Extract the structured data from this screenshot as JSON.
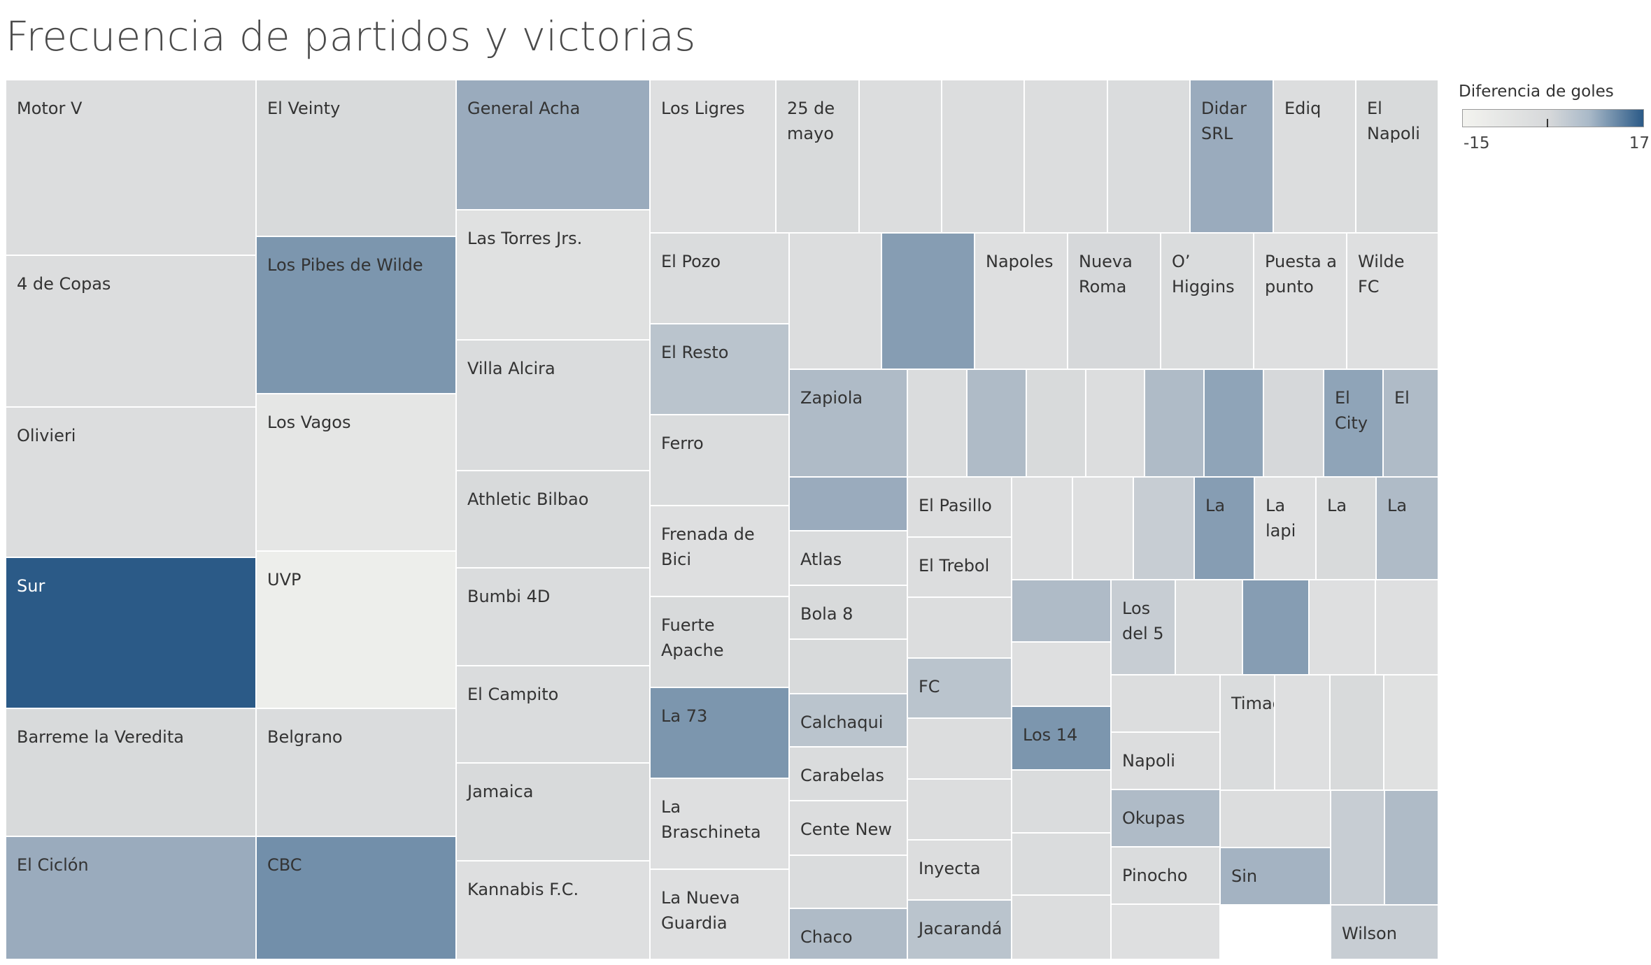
{
  "title": "Frecuencia de partidos y victorias",
  "legend": {
    "title": "Diferencia de goles",
    "min_label": "-15",
    "max_label": "17"
  },
  "chart_data": {
    "type": "treemap",
    "title": "Frecuencia de partidos y victorias",
    "size_measure": "",
    "color_measure": "Diferencia de goles",
    "color_range": [
      -15,
      17
    ],
    "colors": {
      "low": "#f3f3ef",
      "mid": "#d6d8da",
      "high": "#2b5a87"
    },
    "cells": [
      {
        "label": "Motor V",
        "value": 39,
        "color_value": -3
      },
      {
        "label": "4 de Copas",
        "value": 34,
        "color_value": -3
      },
      {
        "label": "Olivieri",
        "value": 33,
        "color_value": -3
      },
      {
        "label": "Sur",
        "value": 33,
        "color_value": 17
      },
      {
        "label": "Barreme la Veredita",
        "value": 28,
        "color_value": -1
      },
      {
        "label": "El Ciclón",
        "value": 28,
        "color_value": 5
      },
      {
        "label": "El Veinty",
        "value": 28,
        "color_value": -1
      },
      {
        "label": "Los Pibes de Wilde",
        "value": 28,
        "color_value": 8
      },
      {
        "label": "Los Vagos",
        "value": 28,
        "color_value": -8
      },
      {
        "label": "UVP",
        "value": 28,
        "color_value": -12
      },
      {
        "label": "Belgrano",
        "value": 22,
        "color_value": -2
      },
      {
        "label": "CBC",
        "value": 22,
        "color_value": 9
      },
      {
        "label": "General Acha",
        "value": 23,
        "color_value": 5
      },
      {
        "label": "Las Torres Jrs.",
        "value": 23,
        "color_value": -5
      },
      {
        "label": "Villa Alcira",
        "value": 23,
        "color_value": -2
      },
      {
        "label": "Athletic Bilbao",
        "value": 17,
        "color_value": -1
      },
      {
        "label": "Bumbi 4D",
        "value": 17,
        "color_value": -2
      },
      {
        "label": "El Campito",
        "value": 17,
        "color_value": -2
      },
      {
        "label": "Jamaica",
        "value": 17,
        "color_value": -1
      },
      {
        "label": "Kannabis F.C.",
        "value": 17,
        "color_value": -4
      },
      {
        "label": "Los Ligres",
        "value": 17,
        "color_value": -4
      },
      {
        "label": "25 de mayo",
        "value": 10,
        "color_value": -1
      },
      {
        "label": "",
        "value": 10,
        "color_value": -3
      },
      {
        "label": "",
        "value": 10,
        "color_value": -3
      },
      {
        "label": "",
        "value": 10,
        "color_value": -3
      },
      {
        "label": "",
        "value": 10,
        "color_value": -2
      },
      {
        "label": "Didar SRL",
        "value": 10,
        "color_value": 5
      },
      {
        "label": "Ediq",
        "value": 10,
        "color_value": -3
      },
      {
        "label": "El Napoli",
        "value": 10,
        "color_value": -1
      },
      {
        "label": "El Pozo",
        "value": 10,
        "color_value": -2
      },
      {
        "label": "El Resto",
        "value": 10,
        "color_value": 2
      },
      {
        "label": "Ferro",
        "value": 10,
        "color_value": -2
      },
      {
        "label": "Frenada de Bici",
        "value": 10,
        "color_value": -4
      },
      {
        "label": "Fuerte Apache",
        "value": 10,
        "color_value": -1
      },
      {
        "label": "La 73",
        "value": 10,
        "color_value": 8
      },
      {
        "label": "La Braschineta",
        "value": 10,
        "color_value": -4
      },
      {
        "label": "La Nueva Guardia",
        "value": 10,
        "color_value": -4
      },
      {
        "label": "",
        "value": 9,
        "color_value": -3
      },
      {
        "label": "",
        "value": 9,
        "color_value": 7
      },
      {
        "label": "Napoles",
        "value": 9,
        "color_value": -4
      },
      {
        "label": "Nueva Roma",
        "value": 9,
        "color_value": 0
      },
      {
        "label": "O’ Higgins",
        "value": 9,
        "color_value": -2
      },
      {
        "label": "Puesta a punto",
        "value": 9,
        "color_value": -4
      },
      {
        "label": "Wilde FC",
        "value": 9,
        "color_value": -4
      },
      {
        "label": "Zapiola",
        "value": 8,
        "color_value": 3
      },
      {
        "label": "",
        "value": 4,
        "color_value": 5
      },
      {
        "label": "Atlas",
        "value": 4,
        "color_value": -2
      },
      {
        "label": "Bola 8",
        "value": 4,
        "color_value": -1
      },
      {
        "label": "",
        "value": 4,
        "color_value": -1
      },
      {
        "label": "Calchaqui",
        "value": 4,
        "color_value": 2
      },
      {
        "label": "Carabelas",
        "value": 4,
        "color_value": -2
      },
      {
        "label": "Cente New",
        "value": 4,
        "color_value": -3
      },
      {
        "label": "",
        "value": 4,
        "color_value": -2
      },
      {
        "label": "Chaco",
        "value": 4,
        "color_value": 3
      },
      {
        "label": "",
        "value": 6,
        "color_value": -2
      },
      {
        "label": "",
        "value": 6,
        "color_value": 3
      },
      {
        "label": "",
        "value": 6,
        "color_value": -1
      },
      {
        "label": "",
        "value": 6,
        "color_value": -3
      },
      {
        "label": "",
        "value": 6,
        "color_value": 3
      },
      {
        "label": "",
        "value": 6,
        "color_value": 6
      },
      {
        "label": "",
        "value": 6,
        "color_value": 0
      },
      {
        "label": "El City",
        "value": 6,
        "color_value": 6
      },
      {
        "label": "El",
        "value": 6,
        "color_value": 3
      },
      {
        "label": "El Pasillo",
        "value": 5,
        "color_value": -3
      },
      {
        "label": "El Trebol",
        "value": 5,
        "color_value": -3
      },
      {
        "label": "",
        "value": 5,
        "color_value": -3
      },
      {
        "label": "FC",
        "value": 5,
        "color_value": 2
      },
      {
        "label": "",
        "value": 5,
        "color_value": -3
      },
      {
        "label": "",
        "value": 5,
        "color_value": -3
      },
      {
        "label": "Inyecta",
        "value": 5,
        "color_value": -3
      },
      {
        "label": "Jacarandá",
        "value": 5,
        "color_value": 2
      },
      {
        "label": "",
        "value": 5,
        "color_value": -4
      },
      {
        "label": "",
        "value": 5,
        "color_value": -4
      },
      {
        "label": "",
        "value": 5,
        "color_value": 1
      },
      {
        "label": "La",
        "value": 5,
        "color_value": 7
      },
      {
        "label": "La lapi",
        "value": 5,
        "color_value": -4
      },
      {
        "label": "La",
        "value": 5,
        "color_value": -1
      },
      {
        "label": "La",
        "value": 5,
        "color_value": 3
      },
      {
        "label": "",
        "value": 5,
        "color_value": 3
      },
      {
        "label": "",
        "value": 5,
        "color_value": -4
      },
      {
        "label": "Los 14",
        "value": 5,
        "color_value": 8
      },
      {
        "label": "",
        "value": 5,
        "color_value": -2
      },
      {
        "label": "",
        "value": 5,
        "color_value": -2
      },
      {
        "label": "",
        "value": 5,
        "color_value": -3
      },
      {
        "label": "Los del 5",
        "value": 5,
        "color_value": 1
      },
      {
        "label": "",
        "value": 5,
        "color_value": -2
      },
      {
        "label": "",
        "value": 5,
        "color_value": 7
      },
      {
        "label": "",
        "value": 5,
        "color_value": -4
      },
      {
        "label": "",
        "value": 5,
        "color_value": -4
      },
      {
        "label": "",
        "value": 4,
        "color_value": -3
      },
      {
        "label": "Napoli",
        "value": 4,
        "color_value": -3
      },
      {
        "label": "Okupas",
        "value": 4,
        "color_value": 3
      },
      {
        "label": "Pinocho",
        "value": 4,
        "color_value": -2
      },
      {
        "label": "",
        "value": 4,
        "color_value": -4
      },
      {
        "label": "Timao",
        "value": 4,
        "color_value": -2
      },
      {
        "label": "",
        "value": 4,
        "color_value": -4
      },
      {
        "label": "",
        "value": 4,
        "color_value": -1
      },
      {
        "label": "",
        "value": 4,
        "color_value": -5
      },
      {
        "label": "",
        "value": 4,
        "color_value": -3
      },
      {
        "label": "Sin",
        "value": 4,
        "color_value": 4
      },
      {
        "label": "",
        "value": 4,
        "color_value": 1
      },
      {
        "label": "",
        "value": 4,
        "color_value": 3
      },
      {
        "label": "Wilson",
        "value": 4,
        "color_value": 1
      }
    ]
  }
}
